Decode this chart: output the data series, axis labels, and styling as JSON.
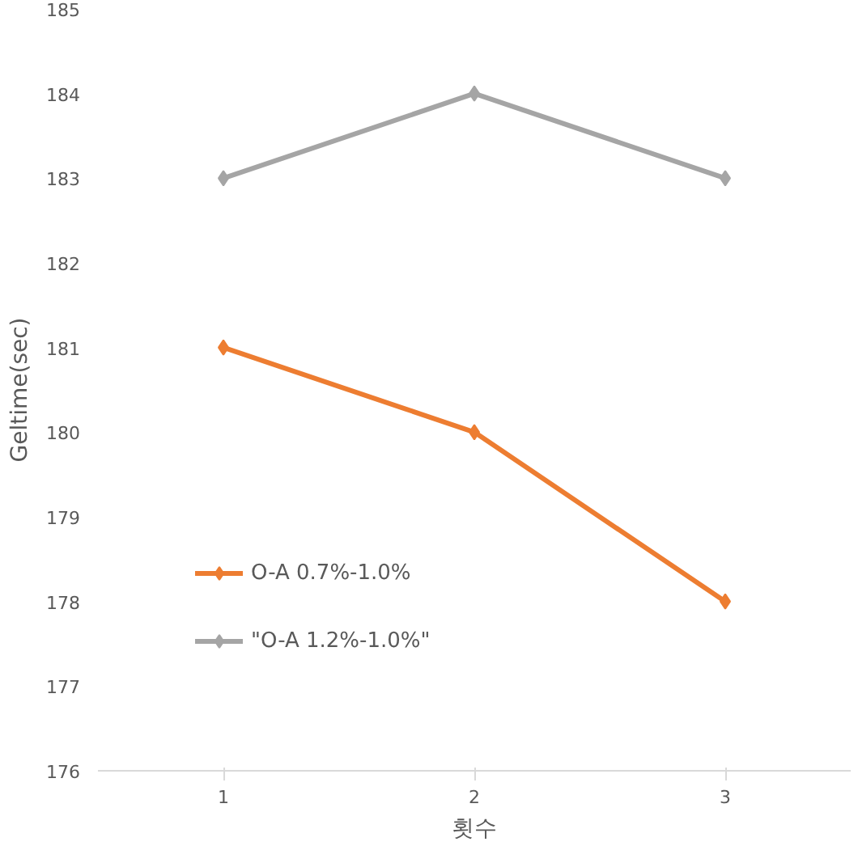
{
  "chart_data": {
    "type": "line",
    "xlabel": "횟수",
    "ylabel": "Geltime(sec)",
    "categories": [
      "1",
      "2",
      "3"
    ],
    "series": [
      {
        "name": "O-A 0.7%-1.0%",
        "color": "#ed7d31",
        "values": [
          181,
          180,
          178
        ]
      },
      {
        "name": "\"O-A 1.2%-1.0%\"",
        "color": "#a5a5a5",
        "values": [
          183,
          184,
          183
        ]
      }
    ],
    "ylim": [
      176,
      185
    ],
    "yticks": [
      176,
      177,
      178,
      179,
      180,
      181,
      182,
      183,
      184,
      185
    ],
    "grid": false,
    "legend": "left",
    "marker": "diamond",
    "line_style": "solid"
  }
}
